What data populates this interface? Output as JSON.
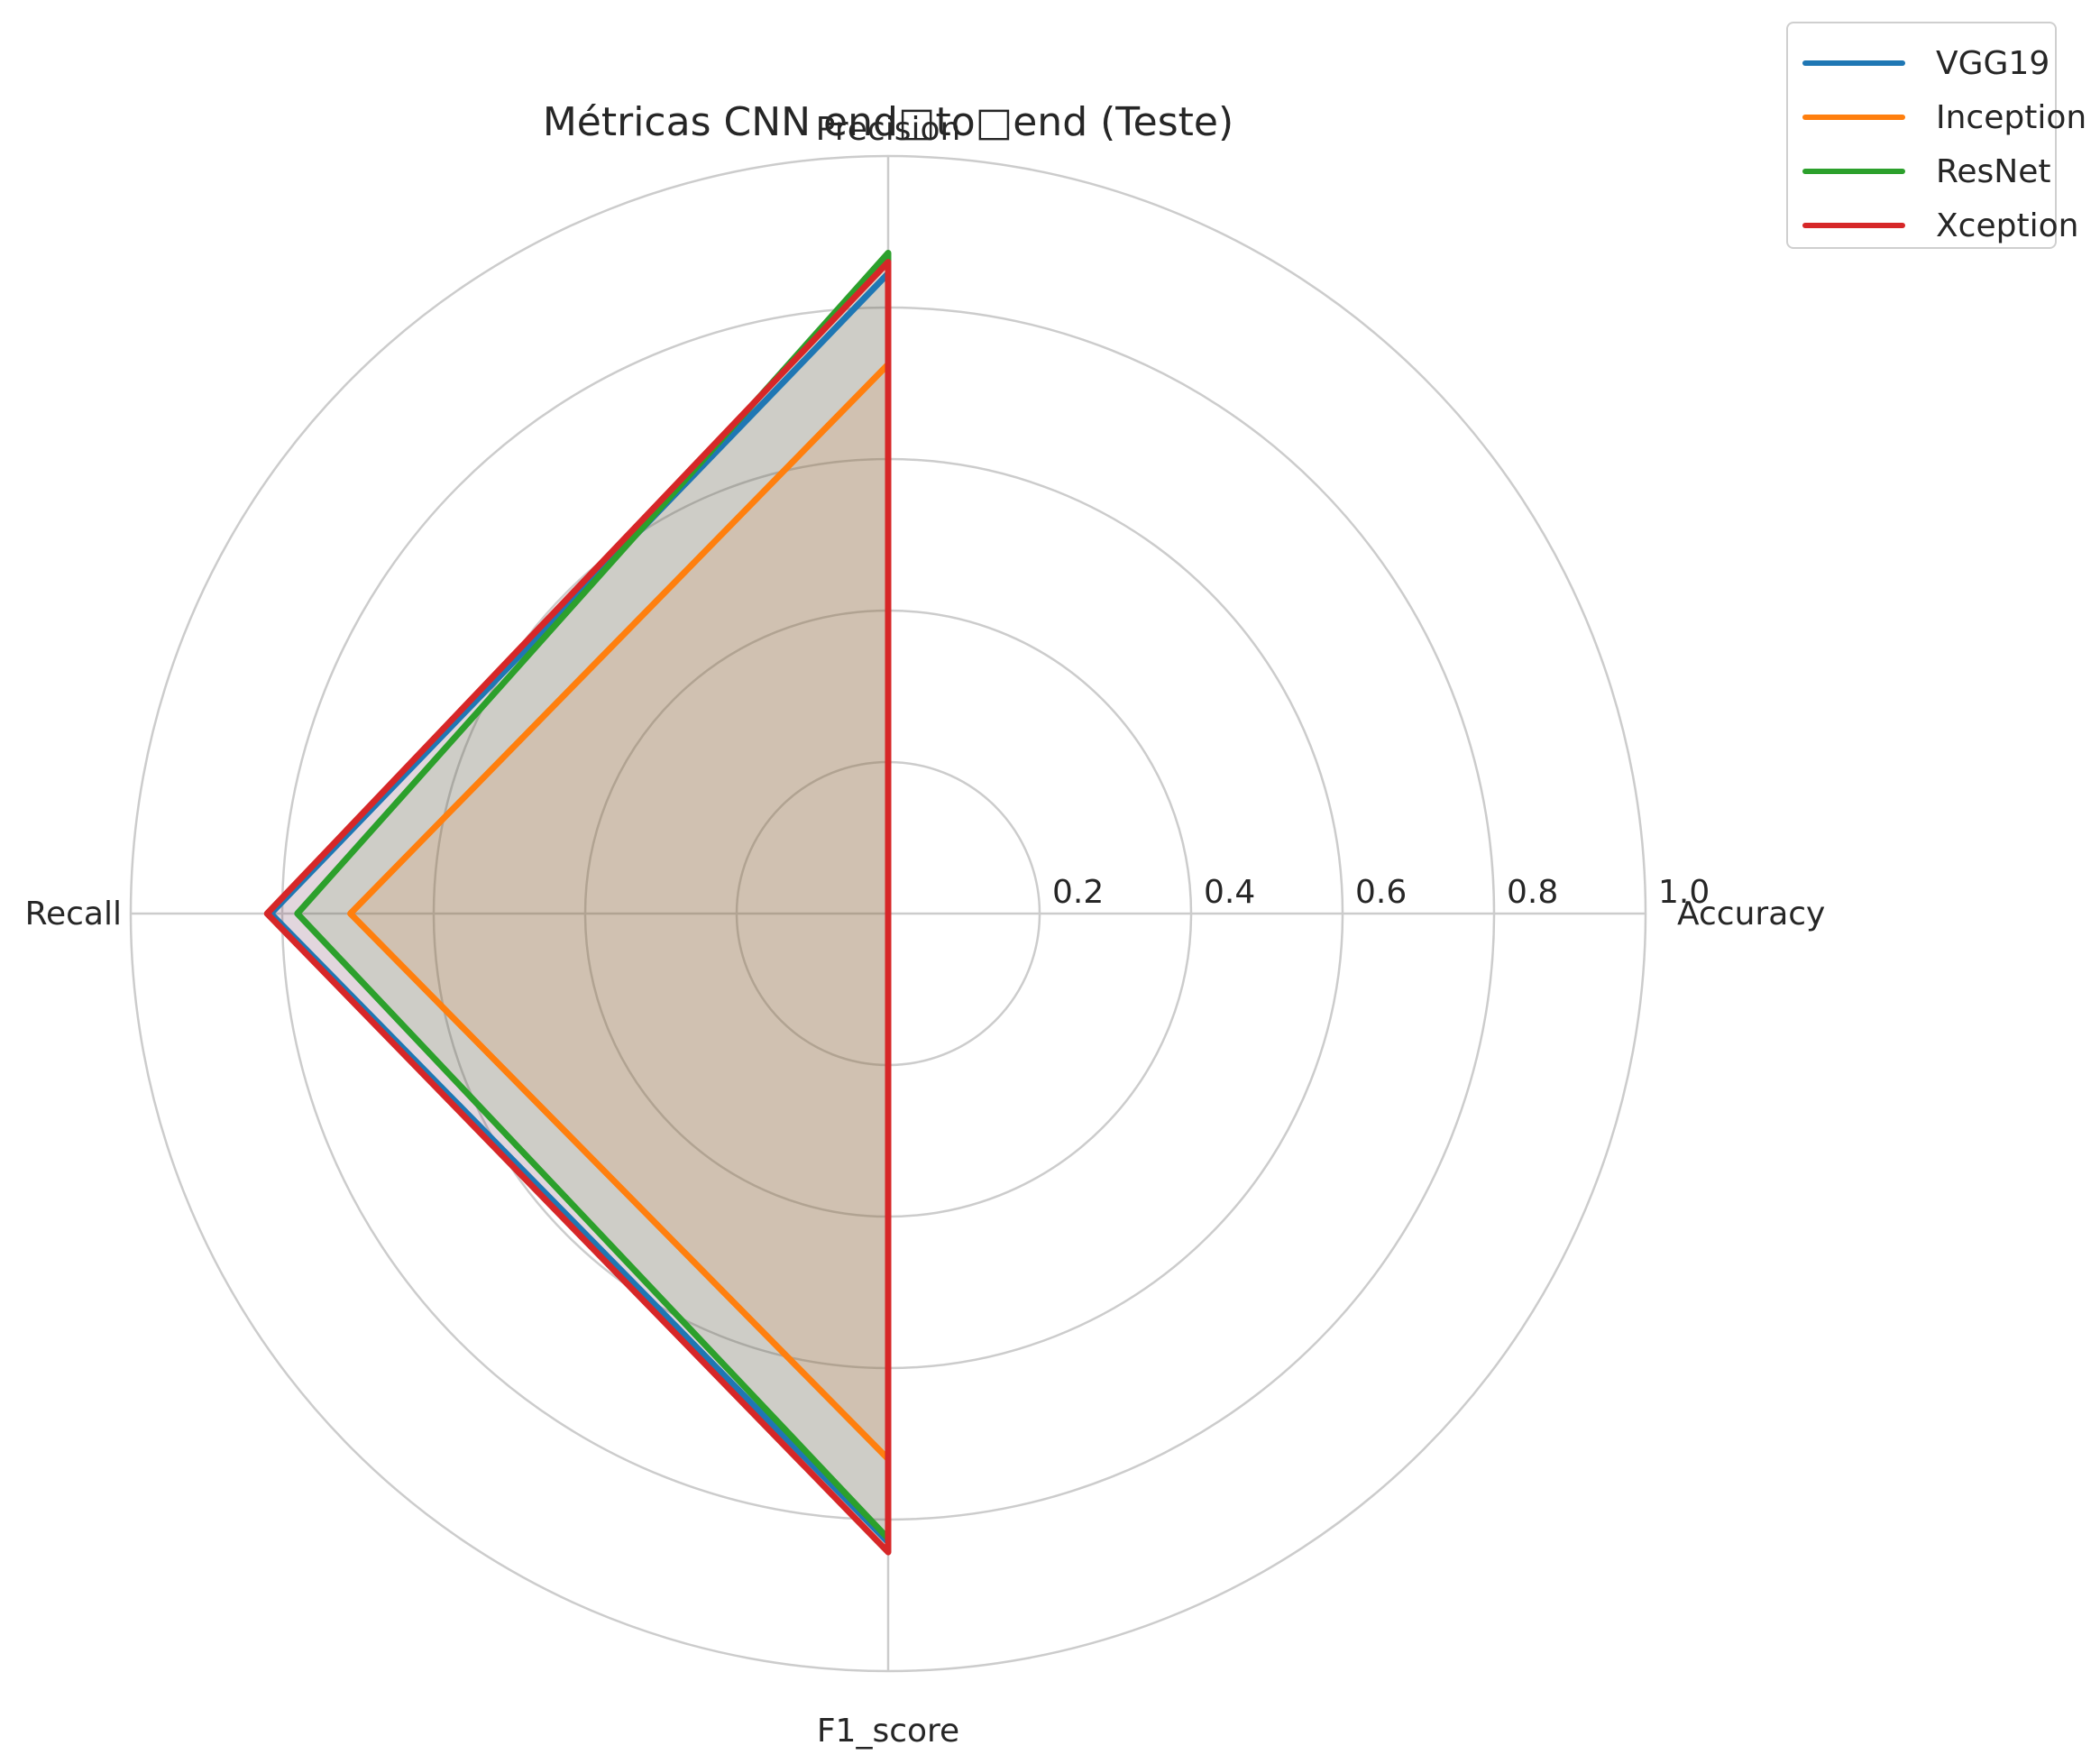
{
  "chart_data": {
    "type": "radar",
    "title": "Métricas CNN end□to□end (Teste)",
    "axes": [
      "Accuracy",
      "Precision",
      "Recall",
      "F1_score"
    ],
    "radial_range": [
      0,
      1.0
    ],
    "radial_ticks": [
      "0.2",
      "0.4",
      "0.6",
      "0.8",
      "1.0"
    ],
    "grid": true,
    "legend_position": "top-right",
    "series": [
      {
        "name": "VGG19",
        "color": "#1f77b4",
        "values": [
          0.0,
          0.845,
          0.815,
          0.83
        ]
      },
      {
        "name": "Inception",
        "color": "#ff7f0e",
        "values": [
          0.0,
          0.725,
          0.71,
          0.72
        ]
      },
      {
        "name": "ResNet",
        "color": "#2ca02c",
        "values": [
          0.0,
          0.872,
          0.78,
          0.825
        ]
      },
      {
        "name": "Xception",
        "color": "#d62728",
        "values": [
          0.0,
          0.86,
          0.82,
          0.843
        ]
      }
    ]
  }
}
